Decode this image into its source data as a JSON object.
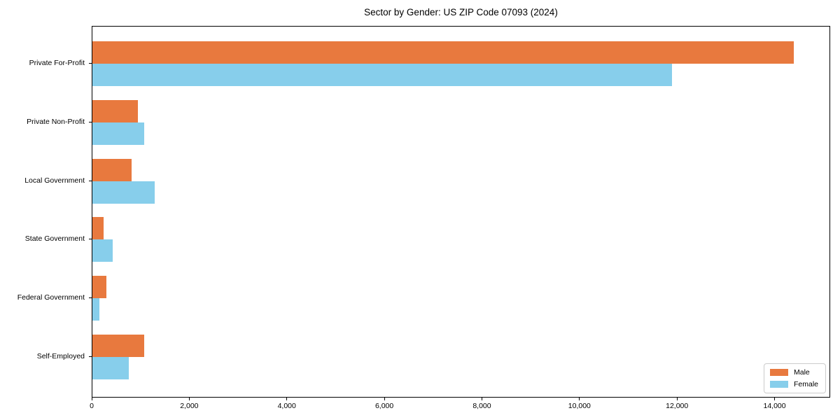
{
  "chart_data": {
    "type": "bar",
    "orientation": "horizontal",
    "title": "Sector by Gender: US ZIP Code 07093 (2024)",
    "categories": [
      "Private For-Profit",
      "Private Non-Profit",
      "Local Government",
      "State Government",
      "Federal Government",
      "Self-Employed"
    ],
    "series": [
      {
        "name": "Male",
        "color": "#e8793e",
        "values": [
          14400,
          930,
          810,
          230,
          290,
          1060
        ]
      },
      {
        "name": "Female",
        "color": "#87ceeb",
        "values": [
          11900,
          1060,
          1280,
          410,
          150,
          750
        ]
      }
    ],
    "xlabel": "",
    "ylabel": "",
    "xlim": [
      0,
      15140
    ],
    "xticks": [
      0,
      2000,
      4000,
      6000,
      8000,
      10000,
      12000,
      14000
    ],
    "xtick_labels": [
      "0",
      "2,000",
      "4,000",
      "6,000",
      "8,000",
      "10,000",
      "12,000",
      "14,000"
    ],
    "grid": false,
    "legend_position": "lower right",
    "spine_color": "#000000",
    "background_color": "#ffffff"
  }
}
